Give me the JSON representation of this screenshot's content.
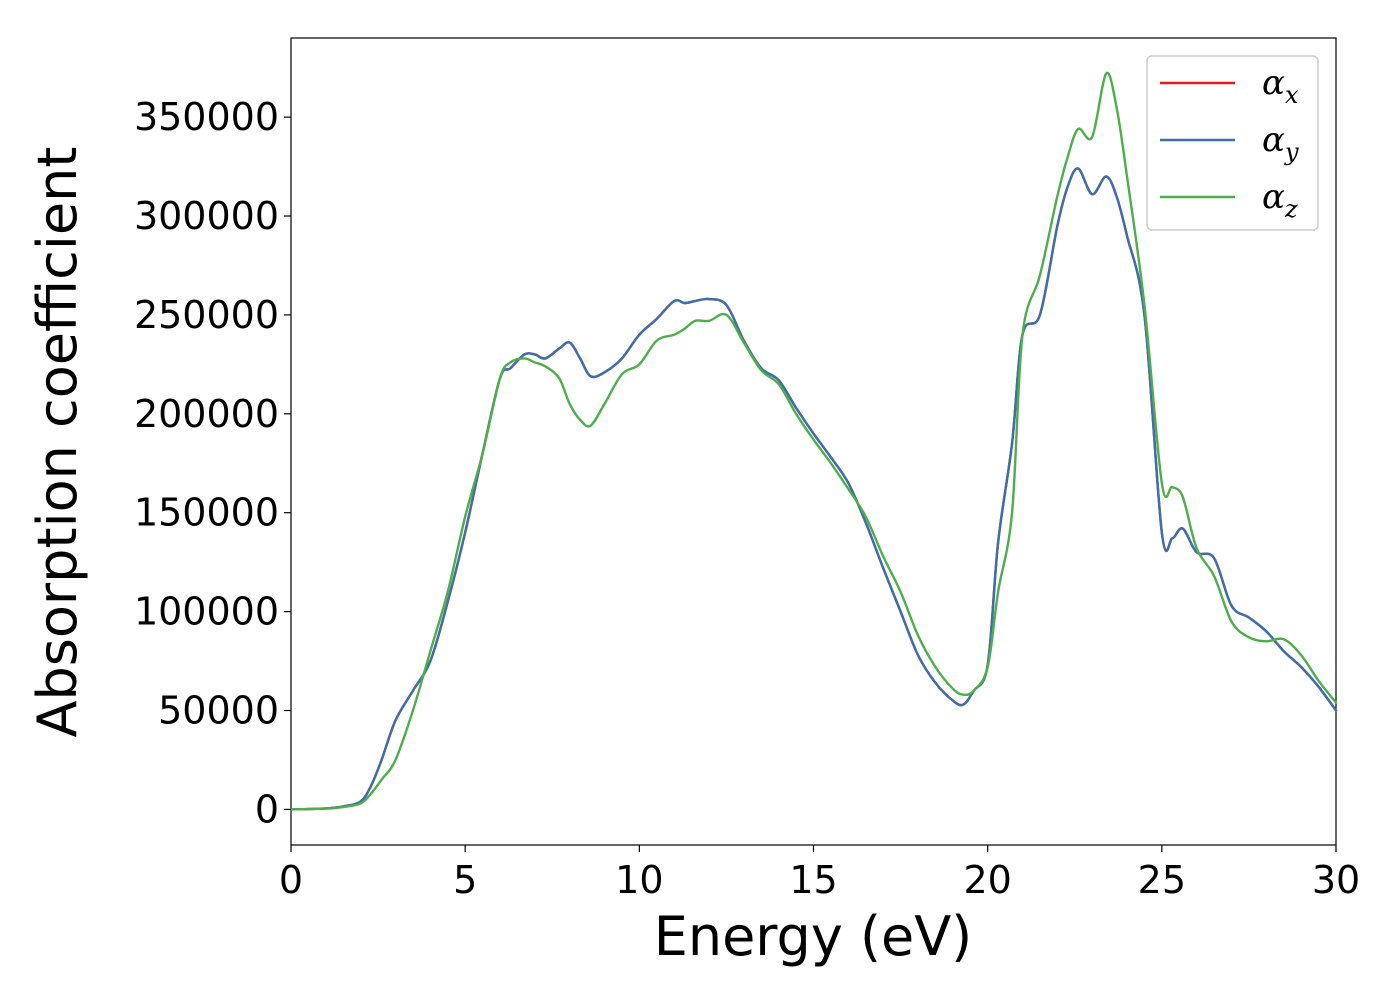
{
  "chart_data": {
    "type": "line",
    "xlabel": "Energy (eV)",
    "ylabel": "Absorption coefficient",
    "xlim": [
      0,
      30
    ],
    "ylim": [
      -18000,
      390000
    ],
    "xticks": [
      0,
      5,
      10,
      15,
      20,
      25,
      30
    ],
    "xtick_labels": [
      "0",
      "5",
      "10",
      "15",
      "20",
      "25",
      "30"
    ],
    "yticks": [
      0,
      50000,
      100000,
      150000,
      200000,
      250000,
      300000,
      350000
    ],
    "ytick_labels": [
      "0",
      "50000",
      "100000",
      "150000",
      "200000",
      "250000",
      "300000",
      "350000"
    ],
    "grid": false,
    "legend_position": "top-right",
    "series": [
      {
        "name": "α",
        "subscript": "x",
        "color": "#e41a1c",
        "x": [
          0,
          1,
          1.5,
          2,
          2.3,
          2.6,
          3.0,
          3.5,
          4.0,
          4.5,
          5.0,
          5.5,
          6.0,
          6.3,
          6.7,
          7.0,
          7.3,
          7.7,
          8.0,
          8.3,
          8.6,
          9.0,
          9.5,
          10.0,
          10.5,
          11.0,
          11.3,
          11.6,
          12.0,
          12.5,
          13.0,
          13.5,
          14.0,
          14.5,
          15.0,
          15.5,
          16.0,
          16.5,
          17.0,
          17.5,
          18.0,
          18.5,
          19.0,
          19.3,
          19.6,
          20.0,
          20.3,
          20.7,
          21.0,
          21.5,
          22.0,
          22.3,
          22.6,
          23.0,
          23.4,
          23.7,
          24.0,
          24.5,
          25.0,
          25.3,
          25.6,
          26.0,
          26.5,
          27.0,
          27.5,
          28.0,
          28.5,
          29.0,
          29.5,
          30.0
        ],
        "values": [
          0,
          500,
          1500,
          4000,
          12000,
          25000,
          45000,
          60000,
          75000,
          105000,
          140000,
          180000,
          218000,
          223000,
          230000,
          230000,
          228000,
          233000,
          236000,
          228000,
          219000,
          221000,
          228000,
          240000,
          248000,
          257000,
          256000,
          257000,
          258000,
          255000,
          237000,
          223000,
          217000,
          203000,
          190000,
          178000,
          165000,
          145000,
          122000,
          100000,
          78000,
          64000,
          55000,
          53000,
          60000,
          73000,
          135000,
          185000,
          240000,
          250000,
          295000,
          315000,
          324000,
          311000,
          320000,
          310000,
          290000,
          250000,
          140000,
          137000,
          142000,
          130000,
          127000,
          103000,
          97000,
          90000,
          80000,
          72000,
          62000,
          50000
        ]
      },
      {
        "name": "α",
        "subscript": "y",
        "color": "#3a6fb0",
        "x": [
          0,
          1,
          1.5,
          2,
          2.3,
          2.6,
          3.0,
          3.5,
          4.0,
          4.5,
          5.0,
          5.5,
          6.0,
          6.3,
          6.7,
          7.0,
          7.3,
          7.7,
          8.0,
          8.3,
          8.6,
          9.0,
          9.5,
          10.0,
          10.5,
          11.0,
          11.3,
          11.6,
          12.0,
          12.5,
          13.0,
          13.5,
          14.0,
          14.5,
          15.0,
          15.5,
          16.0,
          16.5,
          17.0,
          17.5,
          18.0,
          18.5,
          19.0,
          19.3,
          19.6,
          20.0,
          20.3,
          20.7,
          21.0,
          21.5,
          22.0,
          22.3,
          22.6,
          23.0,
          23.4,
          23.7,
          24.0,
          24.5,
          25.0,
          25.3,
          25.6,
          26.0,
          26.5,
          27.0,
          27.5,
          28.0,
          28.5,
          29.0,
          29.5,
          30.0
        ],
        "values": [
          0,
          500,
          1500,
          4000,
          12000,
          25000,
          45000,
          60000,
          75000,
          105000,
          140000,
          180000,
          218000,
          223000,
          230000,
          230000,
          228000,
          233000,
          236000,
          228000,
          219000,
          221000,
          228000,
          240000,
          248000,
          257000,
          256000,
          257000,
          258000,
          255000,
          237000,
          223000,
          217000,
          203000,
          190000,
          178000,
          165000,
          145000,
          122000,
          100000,
          78000,
          64000,
          55000,
          53000,
          60000,
          73000,
          135000,
          185000,
          240000,
          250000,
          295000,
          315000,
          324000,
          311000,
          320000,
          310000,
          290000,
          250000,
          140000,
          137000,
          142000,
          130000,
          127000,
          103000,
          97000,
          90000,
          80000,
          72000,
          62000,
          50000
        ]
      },
      {
        "name": "α",
        "subscript": "z",
        "color": "#4daf4a",
        "x": [
          0,
          1,
          1.5,
          2,
          2.3,
          2.6,
          3.0,
          3.5,
          4.0,
          4.5,
          5.0,
          5.5,
          6.0,
          6.3,
          6.7,
          7.0,
          7.3,
          7.7,
          8.0,
          8.3,
          8.6,
          9.0,
          9.5,
          10.0,
          10.5,
          11.0,
          11.3,
          11.6,
          12.0,
          12.5,
          13.0,
          13.5,
          14.0,
          14.5,
          15.0,
          15.5,
          16.0,
          16.5,
          17.0,
          17.5,
          18.0,
          18.5,
          19.0,
          19.3,
          19.6,
          20.0,
          20.3,
          20.7,
          21.0,
          21.5,
          22.0,
          22.3,
          22.6,
          23.0,
          23.4,
          23.7,
          24.0,
          24.5,
          25.0,
          25.3,
          25.6,
          26.0,
          26.5,
          27.0,
          27.5,
          28.0,
          28.5,
          29.0,
          29.5,
          30.0
        ],
        "values": [
          0,
          400,
          1200,
          3000,
          8000,
          15000,
          25000,
          50000,
          80000,
          110000,
          148000,
          180000,
          218000,
          226000,
          228000,
          226000,
          224000,
          218000,
          205000,
          197000,
          194000,
          205000,
          220000,
          225000,
          237000,
          240000,
          243000,
          247000,
          247000,
          250000,
          236000,
          222000,
          215000,
          200000,
          187000,
          175000,
          162000,
          148000,
          128000,
          110000,
          88000,
          72000,
          61000,
          58000,
          60000,
          72000,
          110000,
          150000,
          240000,
          270000,
          310000,
          330000,
          344000,
          340000,
          372000,
          355000,
          320000,
          255000,
          165000,
          163000,
          158000,
          132000,
          118000,
          95000,
          87000,
          85000,
          86000,
          78000,
          65000,
          54000
        ]
      }
    ]
  }
}
